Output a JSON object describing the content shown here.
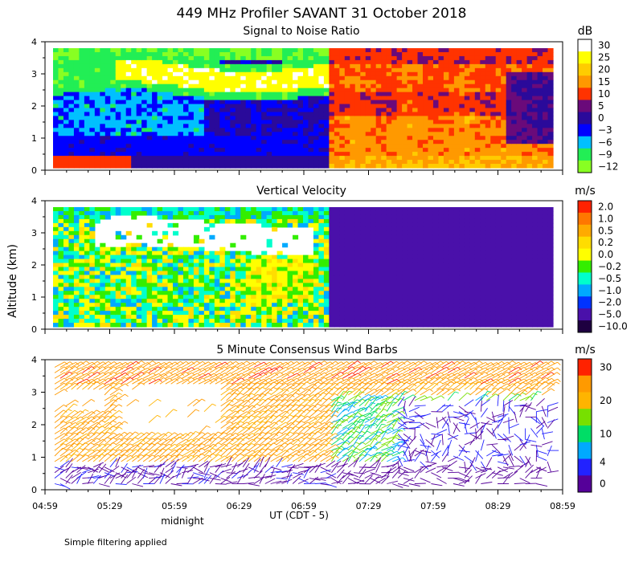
{
  "title": "449 MHz Profiler SAVANT 31 October 2018",
  "ylabel": "Altitude (km)",
  "xlabel": "UT  (CDT - 5)",
  "midnight_label": "midnight",
  "footnote": "Simple filtering applied",
  "x_ticks": [
    "04:59",
    "05:29",
    "05:59",
    "06:29",
    "06:59",
    "07:29",
    "07:59",
    "08:29",
    "08:59"
  ],
  "y_ticks": [
    "0",
    "1",
    "2",
    "3",
    "4"
  ],
  "chart_data": [
    {
      "type": "heatmap",
      "title": "Signal to Noise Ratio",
      "unit": "dB",
      "xlim": [
        "04:59",
        "08:59"
      ],
      "ylim": [
        0,
        4
      ],
      "colorbar_labels": [
        "30",
        "25",
        "20",
        "15",
        "10",
        "5",
        "0",
        "−3",
        "−6",
        "−9",
        "−12"
      ],
      "colorbar_colors": [
        "#ffffff",
        "#ffff00",
        "#ffcc00",
        "#ff9900",
        "#ff3300",
        "#6a0a7a",
        "#2a0a9a",
        "#0000ff",
        "#00c0ff",
        "#22ee55",
        "#88ff22"
      ]
    },
    {
      "type": "heatmap",
      "title": "Vertical Velocity",
      "unit": "m/s",
      "xlim": [
        "04:59",
        "08:59"
      ],
      "ylim": [
        0,
        4
      ],
      "colorbar_labels": [
        "2.0",
        "1.0",
        "0.5",
        "0.2",
        "0.0",
        "−0.2",
        "−0.5",
        "−1.0",
        "−2.0",
        "−5.0",
        "−10.0"
      ],
      "colorbar_colors": [
        "#ff2200",
        "#ff7700",
        "#ffaa00",
        "#ffdd00",
        "#ffff00",
        "#33ee00",
        "#00ffcc",
        "#00aaff",
        "#0033ff",
        "#4a10aa",
        "#1e0040"
      ]
    },
    {
      "type": "scatter",
      "title": "5 Minute Consensus Wind Barbs",
      "unit": "m/s",
      "xlim": [
        "04:59",
        "08:59"
      ],
      "ylim": [
        0,
        4
      ],
      "colorbar_labels": [
        "30",
        "20",
        "10",
        "4",
        "0"
      ],
      "colorbar_colors": [
        "#ff2200",
        "#ff9a00",
        "#ffb400",
        "#77e000",
        "#00dd66",
        "#00aaff",
        "#2222ff",
        "#550099"
      ]
    }
  ]
}
